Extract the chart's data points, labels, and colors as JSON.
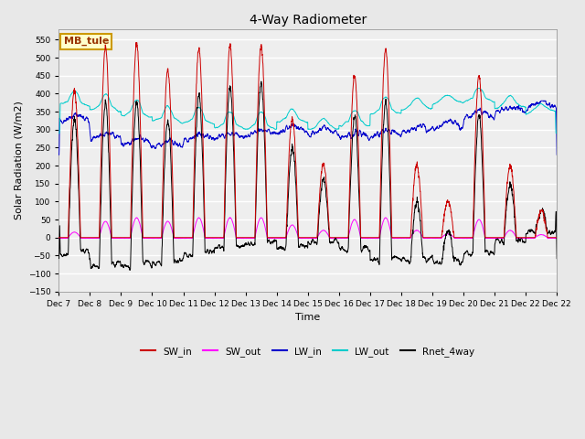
{
  "title": "4-Way Radiometer",
  "xlabel": "Time",
  "ylabel": "Solar Radiation (W/m2)",
  "ylim": [
    -150,
    580
  ],
  "yticks": [
    -150,
    -100,
    -50,
    0,
    50,
    100,
    150,
    200,
    250,
    300,
    350,
    400,
    450,
    500,
    550
  ],
  "legend_labels": [
    "SW_in",
    "SW_out",
    "LW_in",
    "LW_out",
    "Rnet_4way"
  ],
  "legend_colors": [
    "#cc0000",
    "#ff00ff",
    "#0000cc",
    "#00cccc",
    "#000000"
  ],
  "site_label": "MB_tule",
  "site_label_color": "#993300",
  "site_label_bg": "#ffffcc",
  "site_label_edge": "#cc9900",
  "bg_color": "#e8e8e8",
  "plot_bg": "#eeeeee",
  "grid_color": "#ffffff",
  "colors": {
    "SW_in": "#cc0000",
    "SW_out": "#ff00ff",
    "LW_in": "#0000cc",
    "LW_out": "#00cccc",
    "Rnet_4way": "#000000"
  },
  "tick_labels": [
    "Dec 7",
    "Dec 8",
    "Dec 9",
    "Dec 10",
    "Dec 11",
    "Dec 12",
    "Dec 13",
    "Dec 14",
    "Dec 15",
    "Dec 16",
    "Dec 17",
    "Dec 18",
    "Dec 19",
    "Dec 20",
    "Dec 21",
    "Dec 22"
  ],
  "num_days": 16
}
